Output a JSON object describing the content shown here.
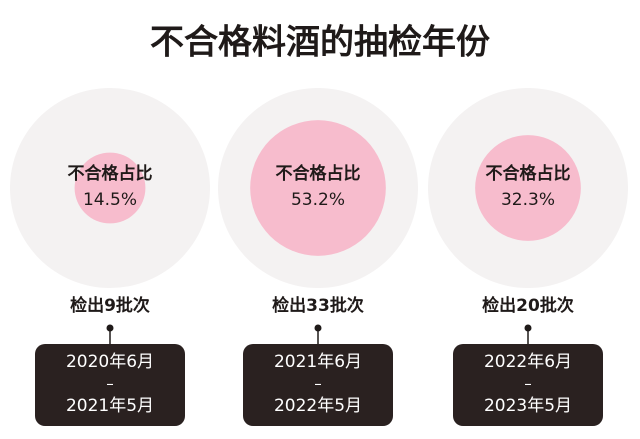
{
  "chart_data": {
    "type": "bubble",
    "title": "不合格料酒的抽检年份",
    "label": "不合格占比",
    "categories": [
      "检出9批次",
      "检出33批次",
      "检出20批次"
    ],
    "values": [
      14.5,
      53.2,
      32.3
    ],
    "value_labels": [
      "14.5%",
      "53.2%",
      "32.3%"
    ],
    "periods": [
      [
        "2020年6月",
        "2021年5月"
      ],
      [
        "2021年6月",
        "2022年5月"
      ],
      [
        "2022年6月",
        "2023年5月"
      ]
    ],
    "period_separator": "–",
    "color": "#f7bccd"
  }
}
